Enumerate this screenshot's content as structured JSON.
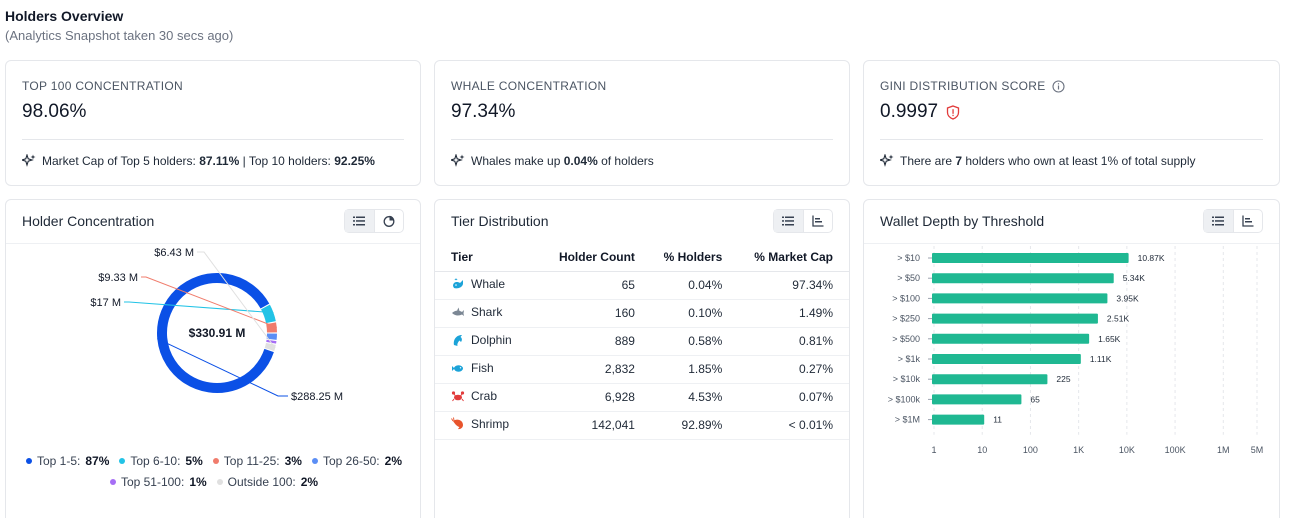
{
  "header": {
    "title": "Holders Overview",
    "subtitle": "(Analytics Snapshot taken 30 secs ago)"
  },
  "stats": {
    "top100": {
      "label": "TOP 100 CONCENTRATION",
      "value": "98.06%",
      "note_pre": "Market Cap of Top 5 holders: ",
      "note_b1": "87.11%",
      "note_mid": " | Top 10 holders: ",
      "note_b2": "92.25%"
    },
    "whale": {
      "label": "WHALE CONCENTRATION",
      "value": "97.34%",
      "note_pre": "Whales make up ",
      "note_b1": "0.04%",
      "note_post": " of holders"
    },
    "gini": {
      "label": "GINI DISTRIBUTION SCORE",
      "value": "0.9997",
      "note_pre": "There are ",
      "note_b1": "7",
      "note_post": " holders who own at least 1% of total supply"
    }
  },
  "holder_concentration": {
    "title": "Holder Concentration",
    "center_label": "$330.91 M",
    "legend_row1": [
      {
        "label": "Top 1-5:",
        "value": "87%",
        "color": "#0b50e6"
      },
      {
        "label": "Top 6-10:",
        "value": "5%",
        "color": "#22c3e6"
      },
      {
        "label": "Top 11-25:",
        "value": "3%",
        "color": "#f07c6c"
      },
      {
        "label": "Top 26-50:",
        "value": "2%",
        "color": "#5b8ef5"
      }
    ],
    "legend_row2": [
      {
        "label": "Top 51-100:",
        "value": "1%",
        "color": "#a66ef5"
      },
      {
        "label": "Outside 100:",
        "value": "2%",
        "color": "#e0e0e0"
      }
    ],
    "chart_data": {
      "type": "pie",
      "categories": [
        "Top 1-5",
        "Top 6-10",
        "Top 11-25",
        "Top 26-50",
        "Top 51-100",
        "Outside 100"
      ],
      "values": [
        87,
        5,
        3,
        2,
        1,
        2
      ],
      "data_labels": [
        "$288.25 M",
        "$17 M",
        "$9.33 M",
        "",
        "",
        "$6.43 M"
      ],
      "title": "",
      "total_label": "$330.91 M"
    }
  },
  "tier_distribution": {
    "title": "Tier Distribution",
    "columns": [
      "Tier",
      "Holder Count",
      "% Holders",
      "% Market Cap"
    ],
    "rows": [
      {
        "tier": "Whale",
        "icon": "whale-icon",
        "color": "#1ca3d8",
        "count": "65",
        "holders": "0.04%",
        "mcap": "97.34%"
      },
      {
        "tier": "Shark",
        "icon": "shark-icon",
        "color": "#7b8794",
        "count": "160",
        "holders": "0.10%",
        "mcap": "1.49%"
      },
      {
        "tier": "Dolphin",
        "icon": "dolphin-icon",
        "color": "#1ca3d8",
        "count": "889",
        "holders": "0.58%",
        "mcap": "0.81%"
      },
      {
        "tier": "Fish",
        "icon": "fish-icon",
        "color": "#1ca3d8",
        "count": "2,832",
        "holders": "1.85%",
        "mcap": "0.27%"
      },
      {
        "tier": "Crab",
        "icon": "crab-icon",
        "color": "#e23b3b",
        "count": "6,928",
        "holders": "4.53%",
        "mcap": "0.07%"
      },
      {
        "tier": "Shrimp",
        "icon": "shrimp-icon",
        "color": "#e8542c",
        "count": "142,041",
        "holders": "92.89%",
        "mcap": "< 0.01%"
      }
    ]
  },
  "wallet_depth": {
    "title": "Wallet Depth by Threshold",
    "chart_data": {
      "type": "bar",
      "orientation": "horizontal",
      "x_scale": "log",
      "categories": [
        "> $10",
        "> $50",
        "> $100",
        "> $250",
        "> $500",
        "> $1k",
        "> $10k",
        "> $100k",
        "> $1M"
      ],
      "values": [
        10870,
        5340,
        3950,
        2510,
        1650,
        1110,
        225,
        65,
        11
      ],
      "data_labels": [
        "10.87K",
        "5.34K",
        "3.95K",
        "2.51K",
        "1.65K",
        "1.11K",
        "225",
        "65",
        "11"
      ],
      "x_ticks": [
        1,
        10,
        100,
        1000,
        10000,
        100000,
        1000000,
        5000000
      ],
      "x_tick_labels": [
        "1",
        "10",
        "100",
        "1K",
        "10K",
        "100K",
        "1M",
        "5M"
      ],
      "xlim": [
        1,
        5000000
      ],
      "grid": true,
      "bar_color": "#1fb892",
      "title": "",
      "xlabel": "",
      "ylabel": ""
    }
  }
}
